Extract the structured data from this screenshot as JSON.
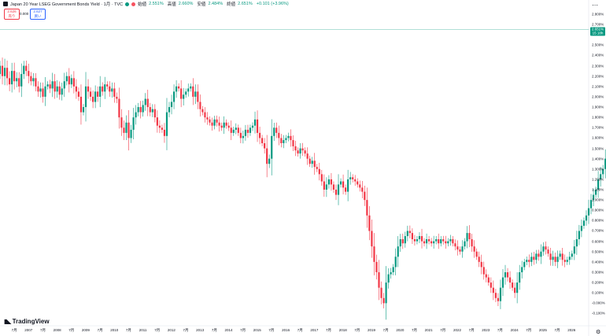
{
  "header": {
    "title": "Japan 20 Year LSEG Government Bonds Yield · 1月 · TVC",
    "open_label": "始値",
    "open_value": "2.551%",
    "high_label": "高値",
    "high_value": "2.660%",
    "low_label": "安値",
    "low_value": "2.484%",
    "close_label": "終値",
    "close_value": "2.651%",
    "change": "+0.101 (+3.96%)"
  },
  "trade": {
    "sell_price": "2.626",
    "sell_label": "売り",
    "buy_price": "2.627",
    "buy_label": "買い",
    "spread": "0.000"
  },
  "price_tag": {
    "value": "2.651%",
    "time": "15 18h"
  },
  "logo": "TradingView",
  "colors": {
    "up": "#089981",
    "down": "#f23645",
    "price_line": "#089981"
  },
  "chart_data": {
    "type": "candlestick",
    "title": "Japan 20 Year LSEG Government Bonds Yield",
    "ylim": [
      -0.15,
      2.8
    ],
    "y_ticks": [
      "2.800%",
      "2.700%",
      "2.600%",
      "2.500%",
      "2.400%",
      "2.300%",
      "2.200%",
      "2.100%",
      "2.000%",
      "1.900%",
      "1.800%",
      "1.700%",
      "1.600%",
      "1.500%",
      "1.400%",
      "1.300%",
      "1.200%",
      "1.100%",
      "1.000%",
      "0.900%",
      "0.800%",
      "0.700%",
      "0.600%",
      "0.500%",
      "0.400%",
      "0.300%",
      "0.200%",
      "0.100%",
      "-0.000%",
      "-0.100%"
    ],
    "x_ticks": [
      "7月",
      "2007",
      "7月",
      "2008",
      "7月",
      "2009",
      "7月",
      "2010",
      "7月",
      "2011",
      "7月",
      "2012",
      "7月",
      "2013",
      "7月",
      "2014",
      "7月",
      "2015",
      "7月",
      "2016",
      "7月",
      "2017",
      "7月",
      "2018",
      "7月",
      "2019",
      "7月",
      "2020",
      "7月",
      "2021",
      "7月",
      "2022",
      "7月",
      "2023",
      "7月",
      "2024",
      "7月",
      "2025",
      "7月",
      "2026"
    ],
    "x_tick_dates": [
      2006.5,
      2007,
      2007.5,
      2008,
      2008.5,
      2009,
      2009.5,
      2010,
      2010.5,
      2011,
      2011.5,
      2012,
      2012.5,
      2013,
      2013.5,
      2014,
      2014.5,
      2015,
      2015.5,
      2016,
      2016.5,
      2017,
      2017.5,
      2018,
      2018.5,
      2019,
      2019.5,
      2020,
      2020.5,
      2021,
      2021.5,
      2022,
      2022.5,
      2023,
      2023.5,
      2024,
      2024.5,
      2025,
      2025.5,
      2026
    ],
    "closes": [
      2.3,
      2.2,
      2.28,
      2.18,
      2.12,
      2.25,
      2.15,
      2.18,
      2.1,
      2.22,
      2.3,
      2.25,
      2.2,
      2.15,
      2.18,
      2.1,
      2.05,
      2.08,
      2.0,
      2.1,
      2.12,
      2.08,
      2.15,
      2.05,
      2.1,
      2.02,
      2.08,
      2.15,
      2.2,
      2.12,
      2.18,
      2.1,
      2.05,
      2.0,
      1.85,
      1.9,
      2.1,
      2.05,
      2.0,
      1.95,
      2.05,
      2.0,
      2.1,
      2.05,
      2.12,
      2.1,
      2.05,
      2.08,
      2.0,
      1.98,
      1.8,
      1.7,
      1.65,
      1.75,
      1.6,
      1.68,
      1.8,
      1.85,
      1.9,
      1.85,
      1.92,
      1.98,
      1.9,
      1.85,
      1.88,
      1.8,
      1.72,
      1.7,
      1.68,
      1.62,
      1.85,
      1.9,
      1.95,
      2.05,
      2.1,
      2.08,
      1.98,
      2.02,
      2.05,
      2.08,
      2.1,
      2.0,
      2.05,
      1.95,
      1.88,
      1.85,
      1.8,
      1.78,
      1.75,
      1.72,
      1.78,
      1.75,
      1.72,
      1.7,
      1.75,
      1.72,
      1.7,
      1.65,
      1.68,
      1.7,
      1.65,
      1.6,
      1.62,
      1.68,
      1.65,
      1.7,
      1.72,
      1.78,
      1.65,
      1.6,
      1.55,
      1.5,
      1.35,
      1.4,
      1.62,
      1.7,
      1.65,
      1.6,
      1.55,
      1.58,
      1.6,
      1.62,
      1.58,
      1.52,
      1.48,
      1.45,
      1.5,
      1.48,
      1.45,
      1.4,
      1.35,
      1.38,
      1.32,
      1.3,
      1.25,
      1.18,
      1.1,
      1.15,
      1.2,
      1.15,
      1.1,
      1.05,
      1.15,
      1.18,
      1.12,
      1.08,
      1.2,
      1.22,
      1.2,
      1.18,
      1.15,
      1.12,
      1.08,
      1.0,
      0.85,
      0.7,
      0.55,
      0.4,
      0.3,
      0.15,
      0.05,
      0.0,
      0.2,
      0.28,
      0.3,
      0.35,
      0.45,
      0.55,
      0.62,
      0.58,
      0.65,
      0.7,
      0.68,
      0.62,
      0.6,
      0.62,
      0.65,
      0.6,
      0.58,
      0.62,
      0.6,
      0.58,
      0.6,
      0.62,
      0.58,
      0.62,
      0.6,
      0.58,
      0.6,
      0.62,
      0.58,
      0.55,
      0.52,
      0.5,
      0.55,
      0.6,
      0.68,
      0.62,
      0.55,
      0.5,
      0.45,
      0.4,
      0.35,
      0.28,
      0.25,
      0.2,
      0.15,
      0.1,
      0.05,
      0.02,
      0.15,
      0.25,
      0.3,
      0.25,
      0.2,
      0.15,
      0.1,
      0.2,
      0.3,
      0.35,
      0.4,
      0.42,
      0.4,
      0.45,
      0.42,
      0.48,
      0.45,
      0.5,
      0.55,
      0.52,
      0.48,
      0.42,
      0.45,
      0.4,
      0.45,
      0.48,
      0.42,
      0.4,
      0.42,
      0.45,
      0.48,
      0.55,
      0.62,
      0.7,
      0.75,
      0.8,
      0.85,
      0.92,
      1.0,
      1.05,
      1.1,
      1.2,
      1.25,
      1.3,
      1.4,
      1.1,
      1.0,
      0.95,
      1.05,
      1.0,
      1.2,
      1.4,
      1.6,
      1.75,
      1.55,
      1.45,
      1.5,
      1.4,
      1.3,
      1.45,
      1.6,
      1.75,
      1.85,
      1.9,
      1.75,
      1.7,
      1.8,
      1.95,
      2.0,
      2.1,
      2.3,
      2.4,
      2.35,
      2.55,
      2.48,
      2.6,
      2.651
    ],
    "open_first": 2.22,
    "x_start": 2006.0,
    "x_step": 0.0834
  }
}
